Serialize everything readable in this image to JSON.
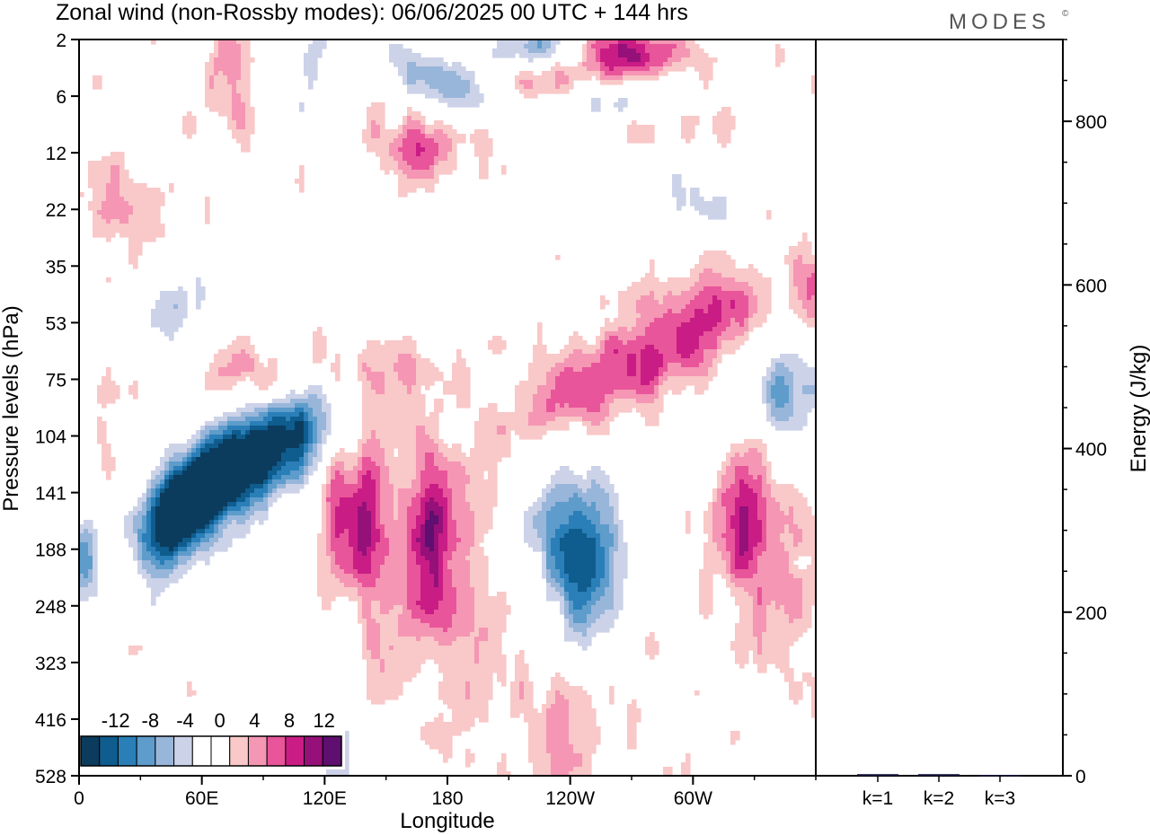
{
  "title": "Zonal wind (non-Rossby modes):  06/06/2025  00 UTC  + 144 hrs",
  "brand": "MODES",
  "brand_mark": "©",
  "chart_data": [
    {
      "type": "heatmap",
      "title": "Zonal wind (non-Rossby modes):  06/06/2025  00 UTC  + 144 hrs",
      "xlabel": "Longitude",
      "ylabel": "Pressure levels (hPa)",
      "x_ticks": [
        "0",
        "60E",
        "120E",
        "180",
        "120W",
        "60W"
      ],
      "x_tick_lon": [
        0,
        60,
        120,
        180,
        240,
        300
      ],
      "xlim": [
        0,
        360
      ],
      "y_ticks": [
        "2",
        "6",
        "12",
        "22",
        "35",
        "53",
        "75",
        "104",
        "141",
        "188",
        "248",
        "323",
        "416",
        "528"
      ],
      "colorbar": {
        "labels": [
          "-12",
          "-8",
          "-4",
          "0",
          "4",
          "8",
          "12"
        ],
        "label_values": [
          -12,
          -8,
          -4,
          0,
          4,
          8,
          12
        ],
        "bins": [
          {
            "range": [
              -16,
              -14
            ],
            "color": "#0b3c5d"
          },
          {
            "range": [
              -14,
              -12
            ],
            "color": "#0f5c8e"
          },
          {
            "range": [
              -12,
              -10
            ],
            "color": "#2a7fb8"
          },
          {
            "range": [
              -10,
              -8
            ],
            "color": "#5e9ccb"
          },
          {
            "range": [
              -8,
              -6
            ],
            "color": "#98b6da"
          },
          {
            "range": [
              -6,
              -4
            ],
            "color": "#ccd2e8"
          },
          {
            "range": [
              -4,
              -2
            ],
            "color": "#ffffff"
          },
          {
            "range": [
              -2,
              2
            ],
            "color": "#ffffff"
          },
          {
            "range": [
              2,
              4
            ],
            "color": "#f9c8c8"
          },
          {
            "range": [
              4,
              6
            ],
            "color": "#f596b4"
          },
          {
            "range": [
              6,
              8
            ],
            "color": "#e9559a"
          },
          {
            "range": [
              8,
              10
            ],
            "color": "#c91d85"
          },
          {
            "range": [
              10,
              12
            ],
            "color": "#96107a"
          },
          {
            "range": [
              12,
              14
            ],
            "color": "#5e0f6f"
          }
        ]
      },
      "features": [
        {
          "lon": 50,
          "level": 8.3,
          "value": -15,
          "dlon": 14,
          "dlev": 0.55,
          "tilt": 0.015
        },
        {
          "lon": 68,
          "level": 7.6,
          "value": -13.5,
          "dlon": 14,
          "dlev": 0.6,
          "tilt": 0.015
        },
        {
          "lon": 88,
          "level": 7.4,
          "value": -11,
          "dlon": 12,
          "dlev": 0.6,
          "tilt": 0.012
        },
        {
          "lon": 108,
          "level": 6.9,
          "value": -10,
          "dlon": 14,
          "dlev": 0.55,
          "tilt": 0.012
        },
        {
          "lon": 42,
          "level": 9.0,
          "value": -7,
          "dlon": 10,
          "dlev": 0.8,
          "tilt": 0.0
        },
        {
          "lon": 3,
          "level": 9.2,
          "value": -8,
          "dlon": 6,
          "dlev": 0.7,
          "tilt": 0.0
        },
        {
          "lon": 75,
          "level": 5.9,
          "value": 5,
          "dlon": 14,
          "dlev": 0.4,
          "tilt": 0.0
        },
        {
          "lon": 45,
          "level": 4.8,
          "value": -4.5,
          "dlon": 30,
          "dlev": 0.45,
          "tilt": 0.015
        },
        {
          "lon": 140,
          "level": 8.5,
          "value": 8,
          "dlon": 7,
          "dlev": 1.2,
          "tilt": 0.0
        },
        {
          "lon": 173,
          "level": 8.6,
          "value": 8,
          "dlon": 7,
          "dlev": 1.0,
          "tilt": 0.0
        },
        {
          "lon": 125,
          "level": 8.5,
          "value": 6,
          "dlon": 5,
          "dlev": 0.9,
          "tilt": 0.0
        },
        {
          "lon": 160,
          "level": 9.4,
          "value": 3.5,
          "dlon": 22,
          "dlev": 1.8,
          "tilt": 0.0
        },
        {
          "lon": 200,
          "level": 10.5,
          "value": 3.3,
          "dlon": 18,
          "dlev": 1.6,
          "tilt": 0.0
        },
        {
          "lon": 248,
          "level": 9.3,
          "value": -9.5,
          "dlon": 11,
          "dlev": 1.0,
          "tilt": 0.0
        },
        {
          "lon": 232,
          "level": 8.8,
          "value": -6,
          "dlon": 18,
          "dlev": 1.2,
          "tilt": 0.0
        },
        {
          "lon": 325,
          "level": 8.6,
          "value": 8.5,
          "dlon": 10,
          "dlev": 1.0,
          "tilt": 0.0
        },
        {
          "lon": 345,
          "level": 9.2,
          "value": 3.5,
          "dlon": 12,
          "dlev": 1.5,
          "tilt": 0.0
        },
        {
          "lon": 240,
          "level": 6.3,
          "value": 6.5,
          "dlon": 26,
          "dlev": 0.55,
          "tilt": 0.012
        },
        {
          "lon": 290,
          "level": 5.5,
          "value": 6.5,
          "dlon": 26,
          "dlev": 0.5,
          "tilt": 0.012
        },
        {
          "lon": 305,
          "level": 4.5,
          "value": 4,
          "dlon": 22,
          "dlev": 0.8,
          "tilt": 0.0
        },
        {
          "lon": 345,
          "level": 6.3,
          "value": -8.5,
          "dlon": 16,
          "dlev": 0.6,
          "tilt": 0.0
        },
        {
          "lon": 358,
          "level": 4.3,
          "value": 6,
          "dlon": 6,
          "dlev": 0.5,
          "tilt": 0.0
        },
        {
          "lon": 12,
          "level": 7.2,
          "value": 3.5,
          "dlon": 5,
          "dlev": 1.8,
          "tilt": 0.0
        },
        {
          "lon": 165,
          "level": 1.9,
          "value": 6.5,
          "dlon": 16,
          "dlev": 0.4,
          "tilt": 0.0
        },
        {
          "lon": 20,
          "level": 2.9,
          "value": 3.5,
          "dlon": 20,
          "dlev": 0.5,
          "tilt": 0.0
        },
        {
          "lon": 300,
          "level": 2.8,
          "value": -5,
          "dlon": 18,
          "dlev": 0.55,
          "tilt": 0.0
        },
        {
          "lon": 180,
          "level": 0.8,
          "value": -7.5,
          "dlon": 26,
          "dlev": 0.35,
          "tilt": -0.01
        },
        {
          "lon": 225,
          "level": 0.15,
          "value": -9,
          "dlon": 16,
          "dlev": 0.3,
          "tilt": 0.0
        },
        {
          "lon": 270,
          "level": 0.25,
          "value": 9,
          "dlon": 22,
          "dlev": 0.35,
          "tilt": 0.0
        },
        {
          "lon": 230,
          "level": 0.8,
          "value": 7,
          "dlon": 20,
          "dlev": 0.35,
          "tilt": 0.0
        },
        {
          "lon": 265,
          "level": 1.1,
          "value": -8,
          "dlon": 26,
          "dlev": 0.3,
          "tilt": 0.0
        },
        {
          "lon": 290,
          "level": 1.4,
          "value": 4.5,
          "dlon": 30,
          "dlev": 0.3,
          "tilt": 0.0
        },
        {
          "lon": 75,
          "level": 0.6,
          "value": 6.5,
          "dlon": 8,
          "dlev": 0.8,
          "tilt": 0.0
        },
        {
          "lon": 110,
          "level": 0.6,
          "value": -5,
          "dlon": 8,
          "dlev": 0.6,
          "tilt": 0.0
        },
        {
          "lon": 125,
          "level": 12.7,
          "value": -4.5,
          "dlon": 14,
          "dlev": 1.3,
          "tilt": 0.0
        },
        {
          "lon": 240,
          "level": 12.3,
          "value": 3.5,
          "dlon": 14,
          "dlev": 1.0,
          "tilt": 0.0
        },
        {
          "lon": 145,
          "level": 5.8,
          "value": 3.5,
          "dlon": 30,
          "dlev": 0.4,
          "tilt": 0.0
        }
      ]
    },
    {
      "type": "bar",
      "ylabel": "Energy (J/kg)",
      "categories": [
        "k=1",
        "k=2",
        "k=3"
      ],
      "values": [
        2,
        2,
        1
      ],
      "ylim": [
        0,
        900
      ],
      "y_ticks": [
        0,
        200,
        400,
        600,
        800
      ],
      "bar_color": "#1a1a40"
    }
  ]
}
